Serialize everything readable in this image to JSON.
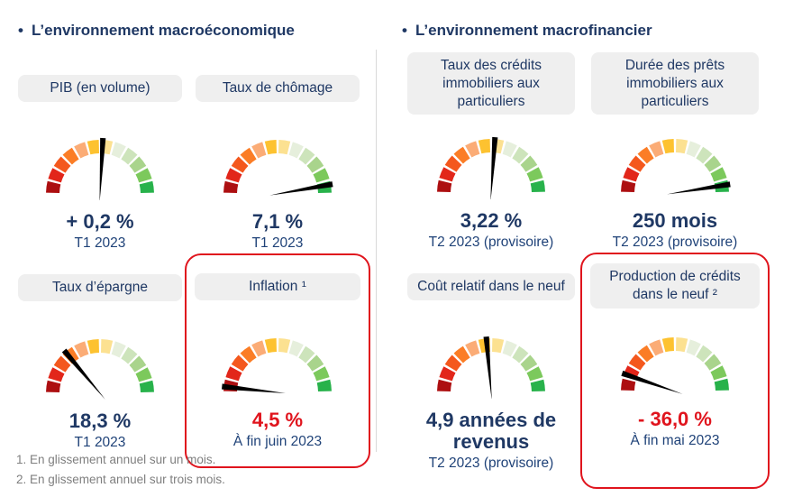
{
  "colors": {
    "navy": "#1f3864",
    "period_blue": "#1f4278",
    "alert_red": "#e0141d",
    "pill_bg": "#efefef",
    "divider_gray": "#d9d9d9",
    "footnote_gray": "#7f7f7f",
    "needle_black": "#000000"
  },
  "gauge_palette": [
    "#ad0f11",
    "#e2261a",
    "#f4581d",
    "#fb7d26",
    "#fbac76",
    "#fdc230",
    "#fce191",
    "#e6efdc",
    "#cde4bb",
    "#a9d48c",
    "#7cc95c",
    "#28b24b"
  ],
  "sections": [
    {
      "bullet": "•",
      "title": "L’environnement macroéconomique",
      "cards": [
        {
          "label": "PIB (en volume)",
          "value": "+ 0,2 %",
          "period": "T1 2023",
          "needle_deg": 87,
          "highlight": false,
          "alert": false
        },
        {
          "label": "Taux de chômage",
          "value": "7,1 %",
          "period": "T1 2023",
          "needle_deg": 10,
          "highlight": false,
          "alert": false
        },
        {
          "label": "Taux d’épargne",
          "value": "18,3 %",
          "period": "T1 2023",
          "needle_deg": 130,
          "highlight": false,
          "alert": false
        },
        {
          "label": "Inflation ¹",
          "value": "4,5 %",
          "period": "À fin juin 2023",
          "needle_deg": 174,
          "highlight": true,
          "alert": true
        }
      ]
    },
    {
      "bullet": "•",
      "title": "L’environnement macrofinancier",
      "cards": [
        {
          "label": "Taux des crédits immobiliers aux particuliers",
          "value": "3,22 %",
          "period": "T2 2023 (provisoire)",
          "needle_deg": 86,
          "highlight": false,
          "alert": false
        },
        {
          "label": "Durée des prêts immobiliers aux particuliers",
          "value": "250 mois",
          "period": "T2 2023 (provisoire)",
          "needle_deg": 9,
          "highlight": false,
          "alert": false
        },
        {
          "label": "Coût relatif dans le neuf",
          "value": "4,9 années de revenus",
          "period": "T2 2023 (provisoire)",
          "needle_deg": 95,
          "highlight": false,
          "alert": false
        },
        {
          "label": "Production de crédits dans le neuf ²",
          "value": "- 36,0 %",
          "period": "À fin mai 2023",
          "needle_deg": 161,
          "highlight": true,
          "alert": true
        }
      ]
    }
  ],
  "footnotes": [
    "1. En glissement annuel sur un mois.",
    "2. En glissement annuel sur trois mois."
  ],
  "chart_data": [
    {
      "type": "gauge",
      "title": "PIB (en volume)",
      "value_label": "+ 0,2 %",
      "value_numeric": 0.2,
      "unit": "%",
      "period": "T1 2023",
      "needle_deg_from_right_end": 87,
      "arc": "180° semicircle, 12 color segments red(left)→green(right)"
    },
    {
      "type": "gauge",
      "title": "Taux de chômage",
      "value_label": "7,1 %",
      "value_numeric": 7.1,
      "unit": "%",
      "period": "T1 2023",
      "needle_deg_from_right_end": 10,
      "arc": "180° semicircle, 12 color segments red(left)→green(right)"
    },
    {
      "type": "gauge",
      "title": "Taux d’épargne",
      "value_label": "18,3 %",
      "value_numeric": 18.3,
      "unit": "%",
      "period": "T1 2023",
      "needle_deg_from_right_end": 130,
      "arc": "180° semicircle, 12 color segments red(left)→green(right)"
    },
    {
      "type": "gauge",
      "title": "Inflation ¹",
      "value_label": "4,5 %",
      "value_numeric": 4.5,
      "unit": "%",
      "period": "À fin juin 2023",
      "needle_deg_from_right_end": 174,
      "arc": "180° semicircle, 12 color segments red(left)→green(right)",
      "highlighted": true
    },
    {
      "type": "gauge",
      "title": "Taux des crédits immobiliers aux particuliers",
      "value_label": "3,22 %",
      "value_numeric": 3.22,
      "unit": "%",
      "period": "T2 2023 (provisoire)",
      "needle_deg_from_right_end": 86,
      "arc": "180° semicircle, 12 color segments red(left)→green(right)"
    },
    {
      "type": "gauge",
      "title": "Durée des prêts immobiliers aux particuliers",
      "value_label": "250 mois",
      "value_numeric": 250,
      "unit": "mois",
      "period": "T2 2023 (provisoire)",
      "needle_deg_from_right_end": 9,
      "arc": "180° semicircle, 12 color segments red(left)→green(right)"
    },
    {
      "type": "gauge",
      "title": "Coût relatif dans le neuf",
      "value_label": "4,9 années de revenus",
      "value_numeric": 4.9,
      "unit": "années de revenus",
      "period": "T2 2023 (provisoire)",
      "needle_deg_from_right_end": 95,
      "arc": "180° semicircle, 12 color segments red(left)→green(right)"
    },
    {
      "type": "gauge",
      "title": "Production de crédits dans le neuf ²",
      "value_label": "- 36,0 %",
      "value_numeric": -36.0,
      "unit": "%",
      "period": "À fin mai 2023",
      "needle_deg_from_right_end": 161,
      "arc": "180° semicircle, 12 color segments red(left)→green(right)",
      "highlighted": true
    }
  ]
}
